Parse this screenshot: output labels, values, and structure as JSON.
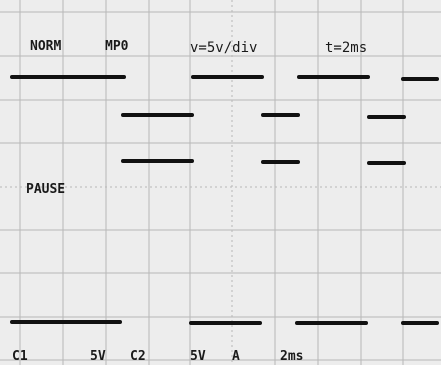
{
  "header": {
    "mode": "NORM",
    "memory": "MP0",
    "volts": "v=5v/div",
    "time": "t=2ms"
  },
  "status": "PAUSE",
  "footer": {
    "ch1": "C1",
    "ch1_scale": "5V",
    "ch2": "C2",
    "ch2_scale": "5V",
    "trigger": "A",
    "timebase": "2ms"
  }
}
